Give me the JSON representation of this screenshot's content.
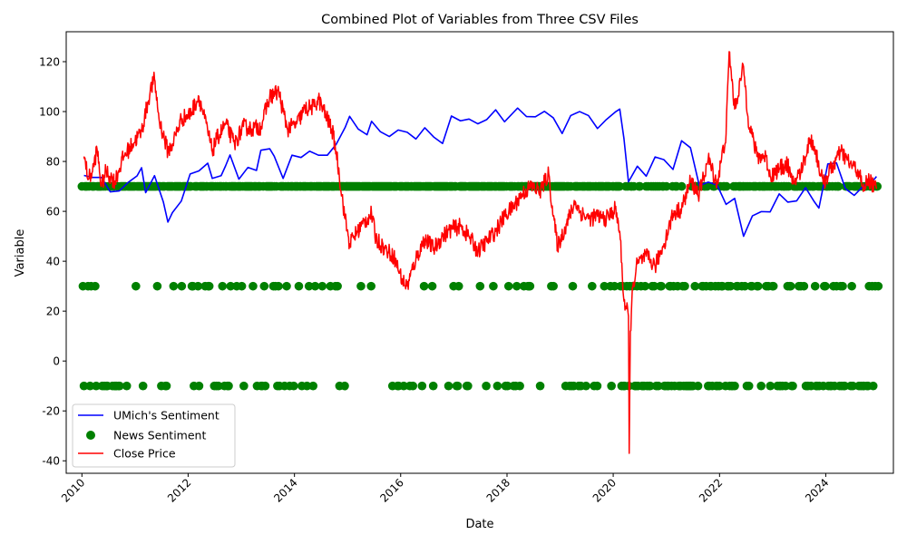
{
  "chart_data": {
    "type": "line",
    "title": "Combined Plot of Variables from Three CSV Files",
    "xlabel": "Date",
    "ylabel": "Variable",
    "xlim": [
      "2009-09-15",
      "2025-04-10"
    ],
    "ylim": [
      -45,
      132
    ],
    "x_ticks": [
      "2010",
      "2012",
      "2014",
      "2016",
      "2018",
      "2020",
      "2022",
      "2024"
    ],
    "y_ticks": [
      -40,
      -20,
      0,
      20,
      40,
      60,
      80,
      100,
      120
    ],
    "grid": false,
    "legend": "lower-left",
    "series": [
      {
        "name": "UMich's Sentiment",
        "kind": "line",
        "color": "#0000ff",
        "points": [
          [
            "2010-01",
            74.4
          ],
          [
            "2010-03",
            73.6
          ],
          [
            "2010-05",
            73.6
          ],
          [
            "2010-07",
            67.8
          ],
          [
            "2010-09",
            68.2
          ],
          [
            "2010-11",
            71.6
          ],
          [
            "2011-01",
            74.2
          ],
          [
            "2011-02",
            77.5
          ],
          [
            "2011-03",
            67.5
          ],
          [
            "2011-05",
            74.3
          ],
          [
            "2011-07",
            63.7
          ],
          [
            "2011-08",
            55.7
          ],
          [
            "2011-09",
            59.5
          ],
          [
            "2011-11",
            64.1
          ],
          [
            "2012-01",
            75.0
          ],
          [
            "2012-03",
            76.2
          ],
          [
            "2012-05",
            79.3
          ],
          [
            "2012-06",
            73.2
          ],
          [
            "2012-08",
            74.3
          ],
          [
            "2012-09",
            78.3
          ],
          [
            "2012-10",
            82.6
          ],
          [
            "2012-12",
            72.9
          ],
          [
            "2013-02",
            77.6
          ],
          [
            "2013-04",
            76.4
          ],
          [
            "2013-05",
            84.5
          ],
          [
            "2013-07",
            85.1
          ],
          [
            "2013-08",
            82.1
          ],
          [
            "2013-10",
            73.2
          ],
          [
            "2013-12",
            82.5
          ],
          [
            "2014-02",
            81.6
          ],
          [
            "2014-04",
            84.1
          ],
          [
            "2014-06",
            82.5
          ],
          [
            "2014-08",
            82.5
          ],
          [
            "2014-10",
            86.9
          ],
          [
            "2014-12",
            93.6
          ],
          [
            "2015-01",
            98.1
          ],
          [
            "2015-03",
            93.0
          ],
          [
            "2015-05",
            90.7
          ],
          [
            "2015-06",
            96.1
          ],
          [
            "2015-08",
            91.9
          ],
          [
            "2015-10",
            90.0
          ],
          [
            "2015-12",
            92.6
          ],
          [
            "2016-02",
            91.7
          ],
          [
            "2016-04",
            89.0
          ],
          [
            "2016-06",
            93.5
          ],
          [
            "2016-08",
            89.8
          ],
          [
            "2016-10",
            87.2
          ],
          [
            "2016-12",
            98.2
          ],
          [
            "2017-02",
            96.3
          ],
          [
            "2017-04",
            97.0
          ],
          [
            "2017-06",
            95.1
          ],
          [
            "2017-08",
            96.8
          ],
          [
            "2017-10",
            100.7
          ],
          [
            "2017-12",
            95.9
          ],
          [
            "2018-02",
            99.7
          ],
          [
            "2018-03",
            101.4
          ],
          [
            "2018-05",
            98.0
          ],
          [
            "2018-07",
            97.9
          ],
          [
            "2018-09",
            100.1
          ],
          [
            "2018-11",
            97.5
          ],
          [
            "2019-01",
            91.2
          ],
          [
            "2019-03",
            98.4
          ],
          [
            "2019-05",
            100.0
          ],
          [
            "2019-07",
            98.4
          ],
          [
            "2019-09",
            93.2
          ],
          [
            "2019-11",
            96.8
          ],
          [
            "2020-01",
            99.8
          ],
          [
            "2020-02",
            101.0
          ],
          [
            "2020-03",
            89.1
          ],
          [
            "2020-04",
            71.8
          ],
          [
            "2020-06",
            78.1
          ],
          [
            "2020-08",
            74.1
          ],
          [
            "2020-10",
            81.8
          ],
          [
            "2020-12",
            80.7
          ],
          [
            "2021-02",
            76.8
          ],
          [
            "2021-04",
            88.3
          ],
          [
            "2021-06",
            85.5
          ],
          [
            "2021-08",
            70.3
          ],
          [
            "2021-10",
            71.7
          ],
          [
            "2021-12",
            70.6
          ],
          [
            "2022-02",
            62.8
          ],
          [
            "2022-04",
            65.2
          ],
          [
            "2022-06",
            50.0
          ],
          [
            "2022-08",
            58.2
          ],
          [
            "2022-10",
            59.9
          ],
          [
            "2022-12",
            59.8
          ],
          [
            "2023-02",
            67.0
          ],
          [
            "2023-04",
            63.7
          ],
          [
            "2023-06",
            64.2
          ],
          [
            "2023-08",
            69.5
          ],
          [
            "2023-10",
            63.8
          ],
          [
            "2023-11",
            61.3
          ],
          [
            "2024-01",
            79.0
          ],
          [
            "2024-03",
            79.4
          ],
          [
            "2024-05",
            69.1
          ],
          [
            "2024-07",
            66.4
          ],
          [
            "2024-09",
            70.1
          ],
          [
            "2024-11",
            71.8
          ],
          [
            "2024-12",
            74.0
          ]
        ]
      },
      {
        "name": "News Sentiment",
        "kind": "scatter",
        "color": "#008000",
        "levels": [
          70,
          30,
          -10
        ],
        "x_range": [
          "2010-01",
          "2024-12"
        ]
      },
      {
        "name": "Close Price",
        "kind": "line",
        "color": "#ff0000",
        "points": [
          [
            "2010-01",
            82
          ],
          [
            "2010-02",
            73
          ],
          [
            "2010-03",
            76
          ],
          [
            "2010-04",
            85
          ],
          [
            "2010-05",
            70
          ],
          [
            "2010-06",
            76
          ],
          [
            "2010-08",
            72
          ],
          [
            "2010-10",
            82
          ],
          [
            "2010-12",
            87
          ],
          [
            "2011-02",
            92
          ],
          [
            "2011-04",
            108
          ],
          [
            "2011-05",
            113
          ],
          [
            "2011-06",
            97
          ],
          [
            "2011-08",
            84
          ],
          [
            "2011-09",
            87
          ],
          [
            "2011-11",
            97
          ],
          [
            "2012-01",
            99
          ],
          [
            "2012-03",
            106
          ],
          [
            "2012-05",
            92
          ],
          [
            "2012-06",
            84
          ],
          [
            "2012-07",
            89
          ],
          [
            "2012-09",
            95
          ],
          [
            "2012-11",
            87
          ],
          [
            "2013-01",
            94
          ],
          [
            "2013-03",
            93
          ],
          [
            "2013-05",
            94
          ],
          [
            "2013-07",
            106
          ],
          [
            "2013-09",
            108
          ],
          [
            "2013-10",
            100
          ],
          [
            "2013-11",
            93
          ],
          [
            "2014-01",
            95
          ],
          [
            "2014-03",
            101
          ],
          [
            "2014-05",
            102
          ],
          [
            "2014-06",
            105
          ],
          [
            "2014-07",
            101
          ],
          [
            "2014-09",
            93
          ],
          [
            "2014-10",
            84
          ],
          [
            "2014-12",
            57
          ],
          [
            "2015-01",
            47
          ],
          [
            "2015-02",
            50
          ],
          [
            "2015-04",
            55
          ],
          [
            "2015-06",
            59
          ],
          [
            "2015-07",
            49
          ],
          [
            "2015-09",
            45
          ],
          [
            "2015-11",
            42
          ],
          [
            "2016-01",
            32
          ],
          [
            "2016-02",
            30
          ],
          [
            "2016-04",
            41
          ],
          [
            "2016-06",
            49
          ],
          [
            "2016-08",
            45
          ],
          [
            "2016-10",
            50
          ],
          [
            "2016-12",
            53
          ],
          [
            "2017-02",
            54
          ],
          [
            "2017-04",
            50
          ],
          [
            "2017-06",
            44
          ],
          [
            "2017-08",
            48
          ],
          [
            "2017-10",
            52
          ],
          [
            "2017-12",
            58
          ],
          [
            "2018-02",
            62
          ],
          [
            "2018-04",
            67
          ],
          [
            "2018-06",
            70
          ],
          [
            "2018-08",
            68
          ],
          [
            "2018-10",
            75
          ],
          [
            "2018-11",
            58
          ],
          [
            "2018-12",
            46
          ],
          [
            "2019-02",
            55
          ],
          [
            "2019-04",
            64
          ],
          [
            "2019-05",
            60
          ],
          [
            "2019-07",
            57
          ],
          [
            "2019-09",
            58
          ],
          [
            "2019-11",
            57
          ],
          [
            "2020-01",
            61
          ],
          [
            "2020-02",
            52
          ],
          [
            "2020-03",
            24
          ],
          [
            "2020-04-15",
            18
          ],
          [
            "2020-04-20",
            -37
          ],
          [
            "2020-04-28",
            12
          ],
          [
            "2020-05",
            30
          ],
          [
            "2020-06",
            39
          ],
          [
            "2020-08",
            42
          ],
          [
            "2020-10",
            38
          ],
          [
            "2020-12",
            47
          ],
          [
            "2021-02",
            59
          ],
          [
            "2021-04",
            61
          ],
          [
            "2021-06",
            72
          ],
          [
            "2021-08",
            67
          ],
          [
            "2021-10",
            81
          ],
          [
            "2021-12",
            71
          ],
          [
            "2022-02",
            91
          ],
          [
            "2022-03-08",
            124
          ],
          [
            "2022-04",
            101
          ],
          [
            "2022-06",
            118
          ],
          [
            "2022-07",
            98
          ],
          [
            "2022-09",
            82
          ],
          [
            "2022-11",
            82
          ],
          [
            "2022-12",
            74
          ],
          [
            "2023-02",
            77
          ],
          [
            "2023-04",
            79
          ],
          [
            "2023-05",
            71
          ],
          [
            "2023-07",
            76
          ],
          [
            "2023-09",
            89
          ],
          [
            "2023-10",
            86
          ],
          [
            "2023-12",
            71
          ],
          [
            "2024-02",
            78
          ],
          [
            "2024-04",
            84
          ],
          [
            "2024-06",
            79
          ],
          [
            "2024-08",
            76
          ],
          [
            "2024-09",
            68
          ],
          [
            "2024-10",
            73
          ],
          [
            "2024-12",
            69
          ]
        ]
      }
    ]
  }
}
